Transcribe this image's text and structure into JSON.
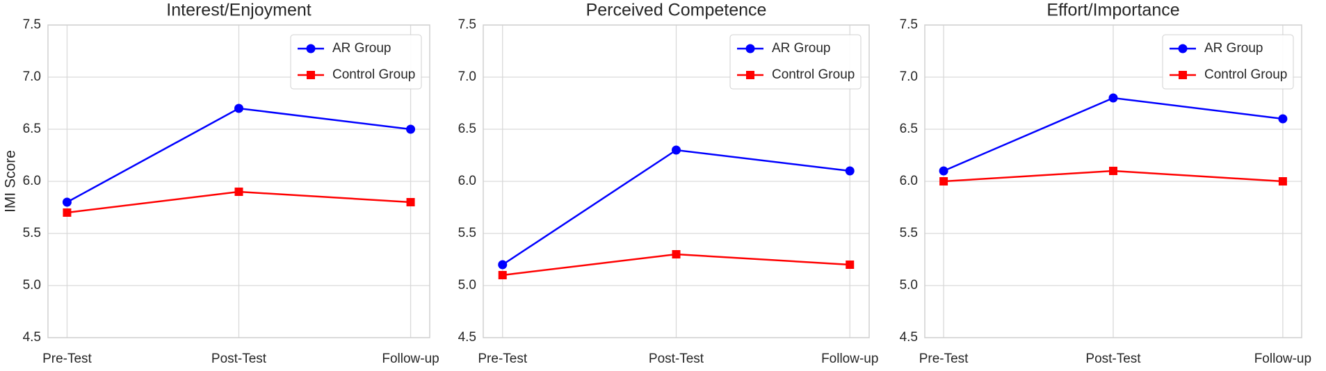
{
  "chart_data": [
    {
      "type": "line",
      "title": "Interest/Enjoyment",
      "y_label": "IMI Score",
      "categories": [
        "Pre-Test",
        "Post-Test",
        "Follow-up"
      ],
      "series": [
        {
          "name": "AR Group",
          "color": "#0000ff",
          "marker": "circle",
          "values": [
            5.8,
            6.7,
            6.5
          ]
        },
        {
          "name": "Control Group",
          "color": "#ff0000",
          "marker": "square",
          "values": [
            5.7,
            5.9,
            5.8
          ]
        }
      ],
      "ylim": [
        4.5,
        7.5
      ],
      "yticks": [
        4.5,
        {
          "value": 5,
          "label": "5.0"
        },
        5.5,
        {
          "value": 6,
          "label": "6.0"
        },
        6.5,
        {
          "value": 7,
          "label": "7.0"
        },
        7.5
      ],
      "grid": true,
      "legend": "upper right"
    },
    {
      "type": "line",
      "title": "Perceived Competence",
      "categories": [
        "Pre-Test",
        "Post-Test",
        "Follow-up"
      ],
      "series": [
        {
          "name": "AR Group",
          "color": "#0000ff",
          "marker": "circle",
          "values": [
            5.2,
            6.3,
            6.1
          ]
        },
        {
          "name": "Control Group",
          "color": "#ff0000",
          "marker": "square",
          "values": [
            5.1,
            5.3,
            5.2
          ]
        }
      ],
      "ylim": [
        4.5,
        7.5
      ],
      "yticks": [
        4.5,
        {
          "value": 5,
          "label": "5.0"
        },
        5.5,
        {
          "value": 6,
          "label": "6.0"
        },
        6.5,
        {
          "value": 7,
          "label": "7.0"
        },
        7.5
      ],
      "grid": true,
      "legend": "upper right"
    },
    {
      "type": "line",
      "title": "Effort/Importance",
      "categories": [
        "Pre-Test",
        "Post-Test",
        "Follow-up"
      ],
      "series": [
        {
          "name": "AR Group",
          "color": "#0000ff",
          "marker": "circle",
          "values": [
            6.1,
            6.8,
            6.6
          ]
        },
        {
          "name": "Control Group",
          "color": "#ff0000",
          "marker": "square",
          "values": [
            6.0,
            6.1,
            6.0
          ]
        }
      ],
      "ylim": [
        4.5,
        7.5
      ],
      "yticks": [
        4.5,
        {
          "value": 5,
          "label": "5.0"
        },
        5.5,
        {
          "value": 6,
          "label": "6.0"
        },
        6.5,
        {
          "value": 7,
          "label": "7.0"
        },
        7.5
      ],
      "grid": true,
      "legend": "upper right"
    }
  ]
}
